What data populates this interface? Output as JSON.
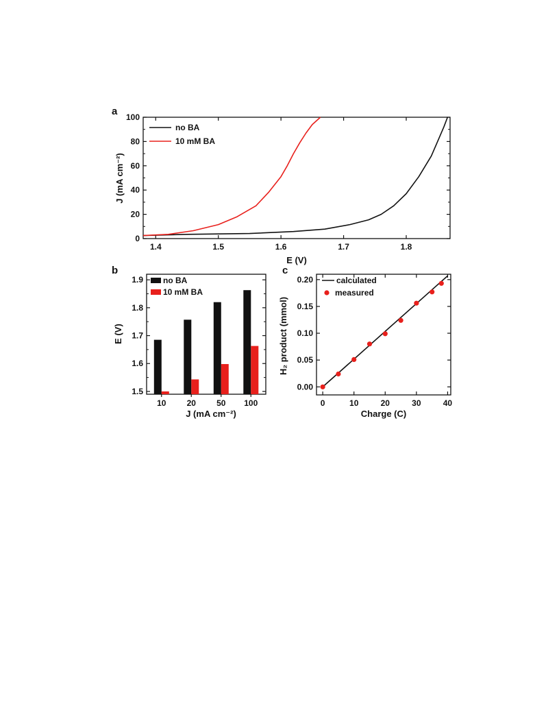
{
  "figure": {
    "panel_labels": [
      "a",
      "b",
      "c"
    ]
  },
  "colors": {
    "black": "#111111",
    "red": "#e8201c"
  },
  "chart_data": [
    {
      "panel": "a",
      "type": "line",
      "xlabel": "E (V)",
      "ylabel": "J (mA cm⁻²)",
      "xlim": [
        1.38,
        1.87
      ],
      "ylim": [
        0,
        100
      ],
      "xticks": [
        1.4,
        1.5,
        1.6,
        1.7,
        1.8
      ],
      "xtick_labels": [
        "1.4",
        "1.5",
        "1.6",
        "1.7",
        "1.8"
      ],
      "yticks": [
        0,
        20,
        40,
        60,
        80,
        100
      ],
      "ytick_labels": [
        "0",
        "20",
        "40",
        "60",
        "80",
        "100"
      ],
      "legend": "top-left",
      "grid": false,
      "series": [
        {
          "name": "no BA",
          "color": "#111111",
          "x": [
            1.38,
            1.45,
            1.55,
            1.62,
            1.67,
            1.71,
            1.74,
            1.76,
            1.78,
            1.8,
            1.82,
            1.84,
            1.86,
            1.866
          ],
          "y": [
            2.5,
            3.5,
            4.2,
            5.8,
            7.8,
            11.5,
            15.5,
            20,
            27,
            37,
            51,
            68,
            92,
            100
          ]
        },
        {
          "name": "10 mM BA",
          "color": "#e8201c",
          "x": [
            1.38,
            1.42,
            1.46,
            1.5,
            1.53,
            1.56,
            1.58,
            1.6,
            1.61,
            1.62,
            1.63,
            1.64,
            1.65,
            1.663
          ],
          "y": [
            2.5,
            3.5,
            6.5,
            11.5,
            18,
            27,
            38,
            51,
            60,
            70,
            79,
            87,
            94,
            100
          ]
        }
      ]
    },
    {
      "panel": "b",
      "type": "bar",
      "categories": [
        "10",
        "20",
        "50",
        "100"
      ],
      "xlabel": "J (mA cm⁻²)",
      "ylabel": "E (V)",
      "ylim": [
        1.49,
        1.92
      ],
      "yticks": [
        1.5,
        1.6,
        1.7,
        1.8,
        1.9
      ],
      "ytick_labels": [
        "1.5",
        "1.6",
        "1.7",
        "1.8",
        "1.9"
      ],
      "legend": "top-left",
      "series": [
        {
          "name": "no BA",
          "color": "#111111",
          "values": [
            1.685,
            1.757,
            1.82,
            1.863
          ]
        },
        {
          "name": "10 mM BA",
          "color": "#e8201c",
          "values": [
            1.5,
            1.543,
            1.598,
            1.663
          ]
        }
      ]
    },
    {
      "panel": "c",
      "type": "scatter",
      "xlabel": "Charge (C)",
      "ylabel": "H₂ product (mmol)",
      "xlim": [
        -2,
        41
      ],
      "ylim": [
        -0.015,
        0.21
      ],
      "xticks": [
        0,
        10,
        20,
        30,
        40
      ],
      "xtick_labels": [
        "0",
        "10",
        "20",
        "30",
        "40"
      ],
      "yticks": [
        0,
        0.05,
        0.1,
        0.15,
        0.2
      ],
      "ytick_labels": [
        "0.00",
        "0.05",
        "0.10",
        "0.15",
        "0.20"
      ],
      "legend": "top-right",
      "series": [
        {
          "name": "calculated",
          "type": "line",
          "color": "#111111",
          "x": [
            0,
            40
          ],
          "y": [
            0,
            0.207
          ]
        },
        {
          "name": "measured",
          "type": "scatter",
          "color": "#e8201c",
          "x": [
            0,
            5,
            10,
            15,
            20,
            25,
            30,
            35,
            38
          ],
          "y": [
            0,
            0.024,
            0.051,
            0.08,
            0.099,
            0.124,
            0.156,
            0.177,
            0.193
          ]
        }
      ]
    }
  ]
}
